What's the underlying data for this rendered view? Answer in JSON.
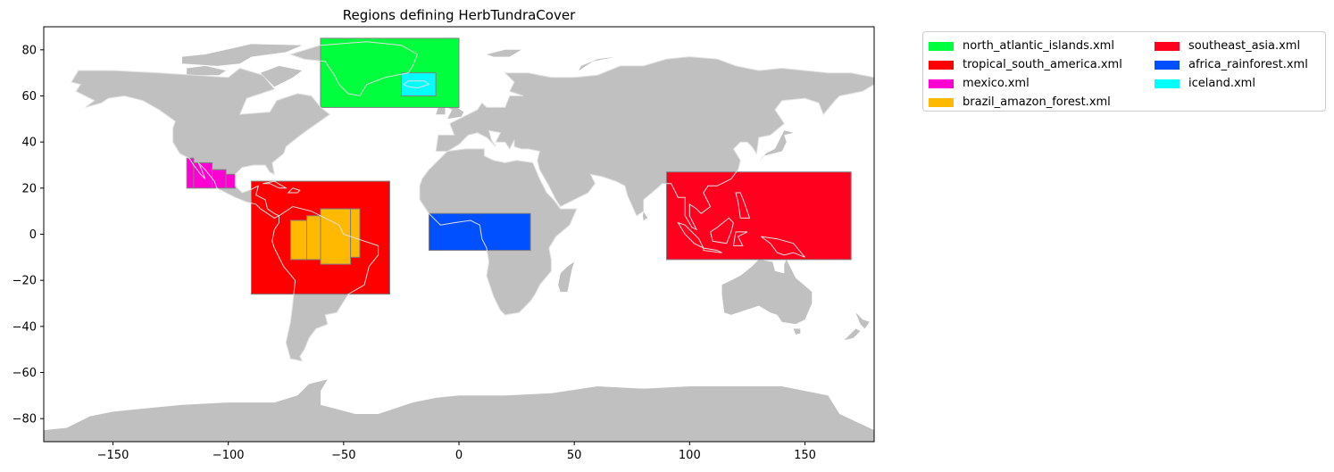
{
  "title": "Regions defining HerbTundraCover",
  "x_ticks": [
    "−150",
    "−100",
    "−50",
    "0",
    "50",
    "100",
    "150"
  ],
  "y_ticks": [
    "80",
    "60",
    "40",
    "20",
    "0",
    "−20",
    "−40",
    "−60",
    "−80"
  ],
  "map": {
    "xlim": [
      -180,
      180
    ],
    "ylim": [
      -90,
      90
    ],
    "land_color": "#c0c0c0",
    "coast_color": "#e0e0e0",
    "box_edge_color": "#808080"
  },
  "legend": [
    {
      "label": "north_atlantic_islands.xml",
      "color": "#00ff3c"
    },
    {
      "label": "southeast_asia.xml",
      "color": "#ff001e"
    },
    {
      "label": "tropical_south_america.xml",
      "color": "#ff0000"
    },
    {
      "label": "africa_rainforest.xml",
      "color": "#0050ff"
    },
    {
      "label": "mexico.xml",
      "color": "#ff00d2"
    },
    {
      "label": "iceland.xml",
      "color": "#00ffff"
    },
    {
      "label": "brazil_amazon_forest.xml",
      "color": "#ffb900"
    }
  ],
  "chart_data": {
    "type": "map",
    "title": "Regions defining HerbTundraCover",
    "xlim": [
      -180,
      180
    ],
    "ylim": [
      -90,
      90
    ],
    "regions": [
      {
        "name": "north_atlantic_islands.xml",
        "color": "#00ff3c",
        "boxes": [
          [
            -60,
            55,
            0,
            85
          ]
        ]
      },
      {
        "name": "iceland.xml",
        "color": "#00ffff",
        "boxes": [
          [
            -25,
            60,
            -10,
            70
          ]
        ]
      },
      {
        "name": "mexico.xml",
        "color": "#ff00d2",
        "boxes": [
          [
            -118,
            20,
            -115,
            33
          ],
          [
            -115,
            20,
            -107,
            31
          ],
          [
            -107,
            20,
            -101,
            28
          ],
          [
            -101,
            20,
            -97,
            26
          ]
        ]
      },
      {
        "name": "tropical_south_america.xml",
        "color": "#ff0000",
        "boxes": [
          [
            -90,
            -26,
            -30,
            23
          ]
        ]
      },
      {
        "name": "brazil_amazon_forest.xml",
        "color": "#ffb900",
        "boxes": [
          [
            -73,
            -11,
            -66,
            6
          ],
          [
            -66,
            -11,
            -60,
            8
          ],
          [
            -60,
            -13,
            -47,
            11
          ],
          [
            -47,
            -10,
            -43,
            11
          ]
        ]
      },
      {
        "name": "africa_rainforest.xml",
        "color": "#0050ff",
        "boxes": [
          [
            -13,
            -7,
            31,
            9
          ]
        ]
      },
      {
        "name": "southeast_asia.xml",
        "color": "#ff001e",
        "boxes": [
          [
            90,
            -11,
            170,
            27
          ]
        ]
      }
    ]
  }
}
